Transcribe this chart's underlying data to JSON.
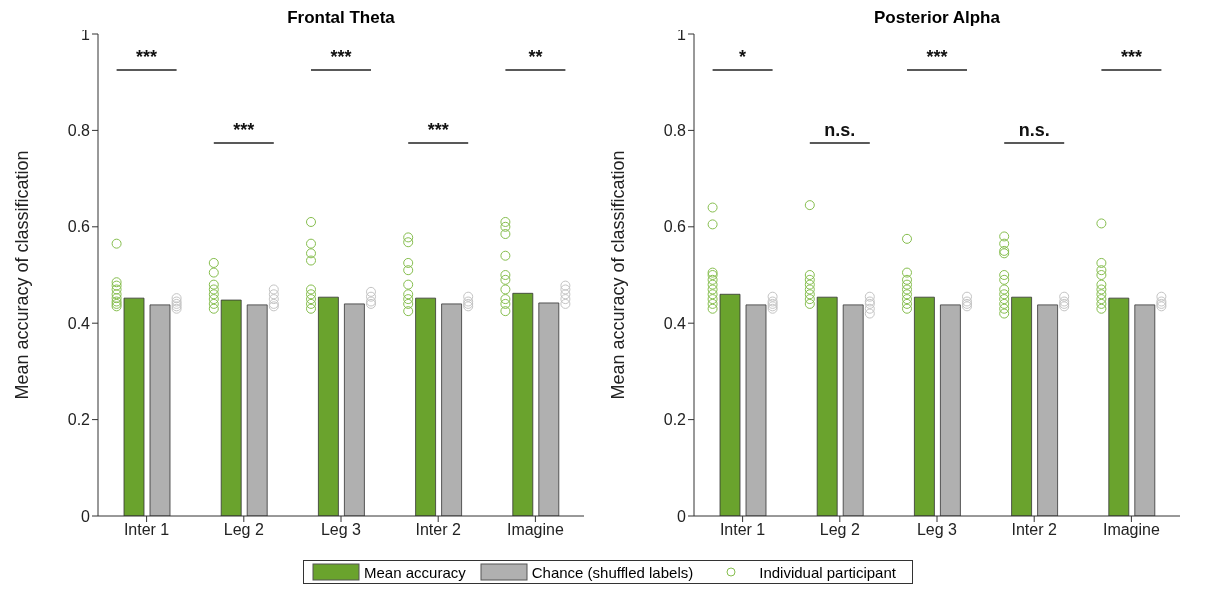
{
  "chart_data": [
    {
      "type": "bar",
      "title": "Frontal Theta",
      "ylabel": "Mean accuracy of classification",
      "categories": [
        "Inter 1",
        "Leg 2",
        "Leg 3",
        "Inter 2",
        "Imagine"
      ],
      "series": [
        {
          "name": "Mean accuracy",
          "color": "#6aa32d",
          "values": [
            0.452,
            0.448,
            0.454,
            0.452,
            0.462
          ]
        },
        {
          "name": "Chance (shuffled labels)",
          "color": "#b0b0b0",
          "values": [
            0.438,
            0.438,
            0.44,
            0.44,
            0.442
          ]
        },
        {
          "type": "scatter",
          "name": "Individual participant",
          "color": "#86be4e",
          "marker": "circle",
          "x": [
            "Inter 1",
            "Inter 1",
            "Inter 1",
            "Inter 1",
            "Inter 1",
            "Inter 1",
            "Inter 1",
            "Inter 1",
            "Inter 1",
            "Leg 2",
            "Leg 2",
            "Leg 2",
            "Leg 2",
            "Leg 2",
            "Leg 2",
            "Leg 2",
            "Leg 2",
            "Leg 3",
            "Leg 3",
            "Leg 3",
            "Leg 3",
            "Leg 3",
            "Leg 3",
            "Leg 3",
            "Leg 3",
            "Leg 3",
            "Inter 2",
            "Inter 2",
            "Inter 2",
            "Inter 2",
            "Inter 2",
            "Inter 2",
            "Inter 2",
            "Inter 2",
            "Inter 2",
            "Imagine",
            "Imagine",
            "Imagine",
            "Imagine",
            "Imagine",
            "Imagine",
            "Imagine",
            "Imagine",
            "Imagine",
            "Imagine"
          ],
          "values": [
            0.565,
            0.485,
            0.478,
            0.47,
            0.46,
            0.452,
            0.445,
            0.44,
            0.435,
            0.525,
            0.505,
            0.48,
            0.47,
            0.46,
            0.45,
            0.44,
            0.43,
            0.61,
            0.565,
            0.545,
            0.53,
            0.47,
            0.46,
            0.45,
            0.44,
            0.43,
            0.578,
            0.568,
            0.525,
            0.51,
            0.48,
            0.46,
            0.45,
            0.44,
            0.425,
            0.61,
            0.6,
            0.585,
            0.54,
            0.5,
            0.49,
            0.47,
            0.45,
            0.44,
            0.425
          ]
        },
        {
          "type": "scatter",
          "color": "#c4c4c4",
          "marker": "circle",
          "x": [
            "Inter 1",
            "Inter 1",
            "Inter 1",
            "Inter 1",
            "Inter 1",
            "Leg 2",
            "Leg 2",
            "Leg 2",
            "Leg 2",
            "Leg 2",
            "Leg 3",
            "Leg 3",
            "Leg 3",
            "Leg 3",
            "Inter 2",
            "Inter 2",
            "Inter 2",
            "Inter 2",
            "Imagine",
            "Imagine",
            "Imagine",
            "Imagine",
            "Imagine"
          ],
          "values": [
            0.452,
            0.445,
            0.44,
            0.435,
            0.43,
            0.47,
            0.46,
            0.45,
            0.44,
            0.435,
            0.465,
            0.455,
            0.445,
            0.44,
            0.455,
            0.445,
            0.44,
            0.435,
            0.478,
            0.47,
            0.46,
            0.45,
            0.44
          ]
        }
      ],
      "ylim": [
        0,
        1
      ],
      "yticks": [
        0,
        0.2,
        0.4,
        0.6,
        0.8,
        1
      ],
      "grid": false,
      "legend": "bottom",
      "annotations": [
        "***",
        "***",
        "***",
        "***",
        "**"
      ]
    },
    {
      "type": "bar",
      "title": "Posterior Alpha",
      "ylabel": "Mean accuracy of classification",
      "categories": [
        "Inter 1",
        "Leg 2",
        "Leg 3",
        "Inter 2",
        "Imagine"
      ],
      "series": [
        {
          "color": "#6aa32d",
          "values": [
            0.46,
            0.454,
            0.454,
            0.454,
            0.452
          ]
        },
        {
          "color": "#b0b0b0",
          "values": [
            0.438,
            0.438,
            0.438,
            0.438,
            0.438
          ]
        },
        {
          "type": "scatter",
          "color": "#86be4e",
          "marker": "circle",
          "x": [
            "Inter 1",
            "Inter 1",
            "Inter 1",
            "Inter 1",
            "Inter 1",
            "Inter 1",
            "Inter 1",
            "Inter 1",
            "Inter 1",
            "Inter 1",
            "Inter 1",
            "Leg 2",
            "Leg 2",
            "Leg 2",
            "Leg 2",
            "Leg 2",
            "Leg 2",
            "Leg 2",
            "Leg 2",
            "Leg 3",
            "Leg 3",
            "Leg 3",
            "Leg 3",
            "Leg 3",
            "Leg 3",
            "Leg 3",
            "Leg 3",
            "Leg 3",
            "Inter 2",
            "Inter 2",
            "Inter 2",
            "Inter 2",
            "Inter 2",
            "Inter 2",
            "Inter 2",
            "Inter 2",
            "Inter 2",
            "Inter 2",
            "Inter 2",
            "Inter 2",
            "Imagine",
            "Imagine",
            "Imagine",
            "Imagine",
            "Imagine",
            "Imagine",
            "Imagine",
            "Imagine",
            "Imagine",
            "Imagine"
          ],
          "values": [
            0.64,
            0.605,
            0.505,
            0.5,
            0.49,
            0.48,
            0.47,
            0.46,
            0.45,
            0.44,
            0.43,
            0.645,
            0.5,
            0.49,
            0.48,
            0.47,
            0.46,
            0.45,
            0.44,
            0.575,
            0.505,
            0.49,
            0.48,
            0.47,
            0.46,
            0.45,
            0.44,
            0.43,
            0.58,
            0.565,
            0.55,
            0.545,
            0.5,
            0.49,
            0.47,
            0.46,
            0.45,
            0.44,
            0.43,
            0.42,
            0.607,
            0.525,
            0.51,
            0.5,
            0.48,
            0.47,
            0.46,
            0.45,
            0.44,
            0.43
          ]
        },
        {
          "type": "scatter",
          "color": "#c4c4c4",
          "marker": "circle",
          "x": [
            "Inter 1",
            "Inter 1",
            "Inter 1",
            "Inter 1",
            "Inter 1",
            "Leg 2",
            "Leg 2",
            "Leg 2",
            "Leg 2",
            "Leg 2",
            "Leg 3",
            "Leg 3",
            "Leg 3",
            "Leg 3",
            "Inter 2",
            "Inter 2",
            "Inter 2",
            "Inter 2",
            "Imagine",
            "Imagine",
            "Imagine",
            "Imagine"
          ],
          "values": [
            0.455,
            0.445,
            0.44,
            0.435,
            0.43,
            0.455,
            0.445,
            0.44,
            0.43,
            0.42,
            0.455,
            0.445,
            0.44,
            0.435,
            0.455,
            0.445,
            0.44,
            0.435,
            0.455,
            0.445,
            0.44,
            0.435
          ]
        }
      ],
      "ylim": [
        0,
        1
      ],
      "yticks": [
        0,
        0.2,
        0.4,
        0.6,
        0.8,
        1
      ],
      "grid": false,
      "annotations": [
        "*",
        "n.s.",
        "***",
        "n.s.",
        "***"
      ]
    }
  ]
}
